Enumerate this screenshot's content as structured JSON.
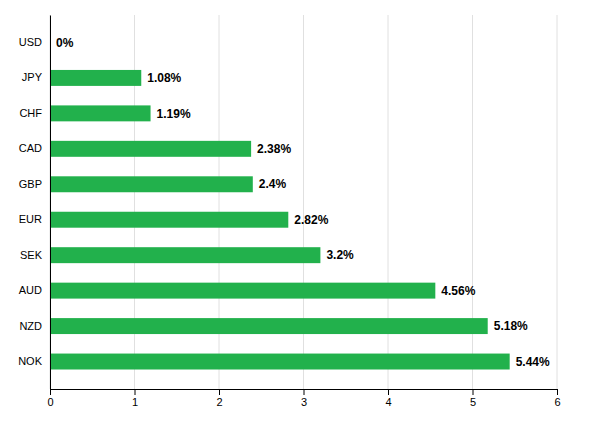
{
  "chart_data": {
    "type": "bar",
    "orientation": "horizontal",
    "categories": [
      "USD",
      "JPY",
      "CHF",
      "CAD",
      "GBP",
      "EUR",
      "SEK",
      "AUD",
      "NZD",
      "NOK"
    ],
    "values": [
      0,
      1.08,
      1.19,
      2.38,
      2.4,
      2.82,
      3.2,
      4.56,
      5.18,
      5.44
    ],
    "value_labels": [
      "0%",
      "1.08%",
      "1.19%",
      "2.38%",
      "2.4%",
      "2.82%",
      "3.2%",
      "4.56%",
      "5.18%",
      "5.44%"
    ],
    "data_labels": true,
    "color": "#22b14c",
    "xlim": [
      0,
      6
    ],
    "xticks": [
      0,
      1,
      2,
      3,
      4,
      5,
      6
    ],
    "grid": true
  }
}
